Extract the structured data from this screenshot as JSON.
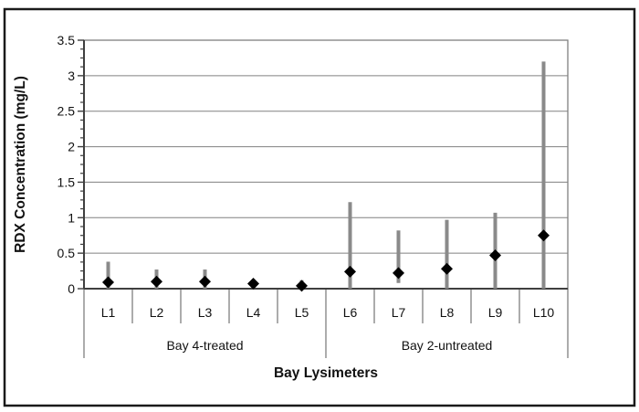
{
  "chart_data": {
    "type": "scatter",
    "title": "",
    "xlabel": "Bay Lysimeters",
    "ylabel": "RDX Concentration (mg/L)",
    "ylim": [
      0,
      3.5
    ],
    "y_major_ticks": [
      0,
      0.5,
      1,
      1.5,
      2,
      2.5,
      3,
      3.5
    ],
    "y_tick_labels": [
      "0",
      "0.5",
      "1",
      "1.5",
      "2",
      "2.5",
      "3",
      "3.5"
    ],
    "y_minor_step": 0.125,
    "grid": true,
    "legend_position": "none",
    "categories": [
      "L1",
      "L2",
      "L3",
      "L4",
      "L5",
      "L6",
      "L7",
      "L8",
      "L9",
      "L10"
    ],
    "category_groups": [
      {
        "label": "Bay 4-treated",
        "start_index": 0,
        "end_index": 4
      },
      {
        "label": "Bay 2-untreated",
        "start_index": 5,
        "end_index": 9
      }
    ],
    "series": [
      {
        "name": "RDX concentration",
        "marker": "diamond",
        "values": [
          0.09,
          0.1,
          0.1,
          0.07,
          0.04,
          0.24,
          0.22,
          0.28,
          0.47,
          0.75
        ],
        "error_low": [
          0.0,
          0.0,
          0.0,
          0.02,
          0.0,
          0.0,
          0.08,
          0.0,
          0.0,
          0.0
        ],
        "error_high": [
          0.38,
          0.27,
          0.27,
          0.11,
          0.12,
          1.22,
          0.82,
          0.97,
          1.07,
          3.2
        ]
      }
    ],
    "colors": {
      "marker": "#000000",
      "error_bar": "#8a8a8a",
      "gridline": "#808080",
      "plot_border": "#808080",
      "axis_line": "#3f3f3f",
      "separator": "#5a5a5a",
      "outer_frame": "#1a1a1a",
      "background": "#ffffff"
    }
  }
}
